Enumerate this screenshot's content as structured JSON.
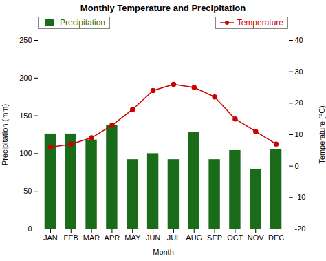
{
  "chart_data": {
    "type": "bar",
    "title": "Monthly Temperature and Precipitation",
    "xlabel": "Month",
    "ylabel": "Precipitation (mm)",
    "y2label": "Temperature (°C)",
    "categories": [
      "JAN",
      "FEB",
      "MAR",
      "APR",
      "MAY",
      "JUN",
      "JUL",
      "AUG",
      "SEP",
      "OCT",
      "NOV",
      "DEC"
    ],
    "series": [
      {
        "name": "Precipitation",
        "type": "bar",
        "color": "#1a6b1a",
        "values": [
          126,
          126,
          118,
          137,
          92,
          100,
          92,
          128,
          92,
          104,
          79,
          105
        ]
      },
      {
        "name": "Temperature",
        "type": "line",
        "color": "#cc0000",
        "marker": "circle",
        "axis": "y2",
        "values": [
          6,
          7,
          9,
          13,
          18,
          24,
          26,
          25,
          22,
          15,
          11,
          7
        ]
      }
    ],
    "ylim": [
      0,
      250
    ],
    "yticks": [
      0,
      50,
      100,
      150,
      200,
      250
    ],
    "y2lim": [
      -20,
      40
    ],
    "y2ticks": [
      -20,
      -10,
      0,
      10,
      20,
      30,
      40
    ],
    "grid": false,
    "legend": "top"
  }
}
